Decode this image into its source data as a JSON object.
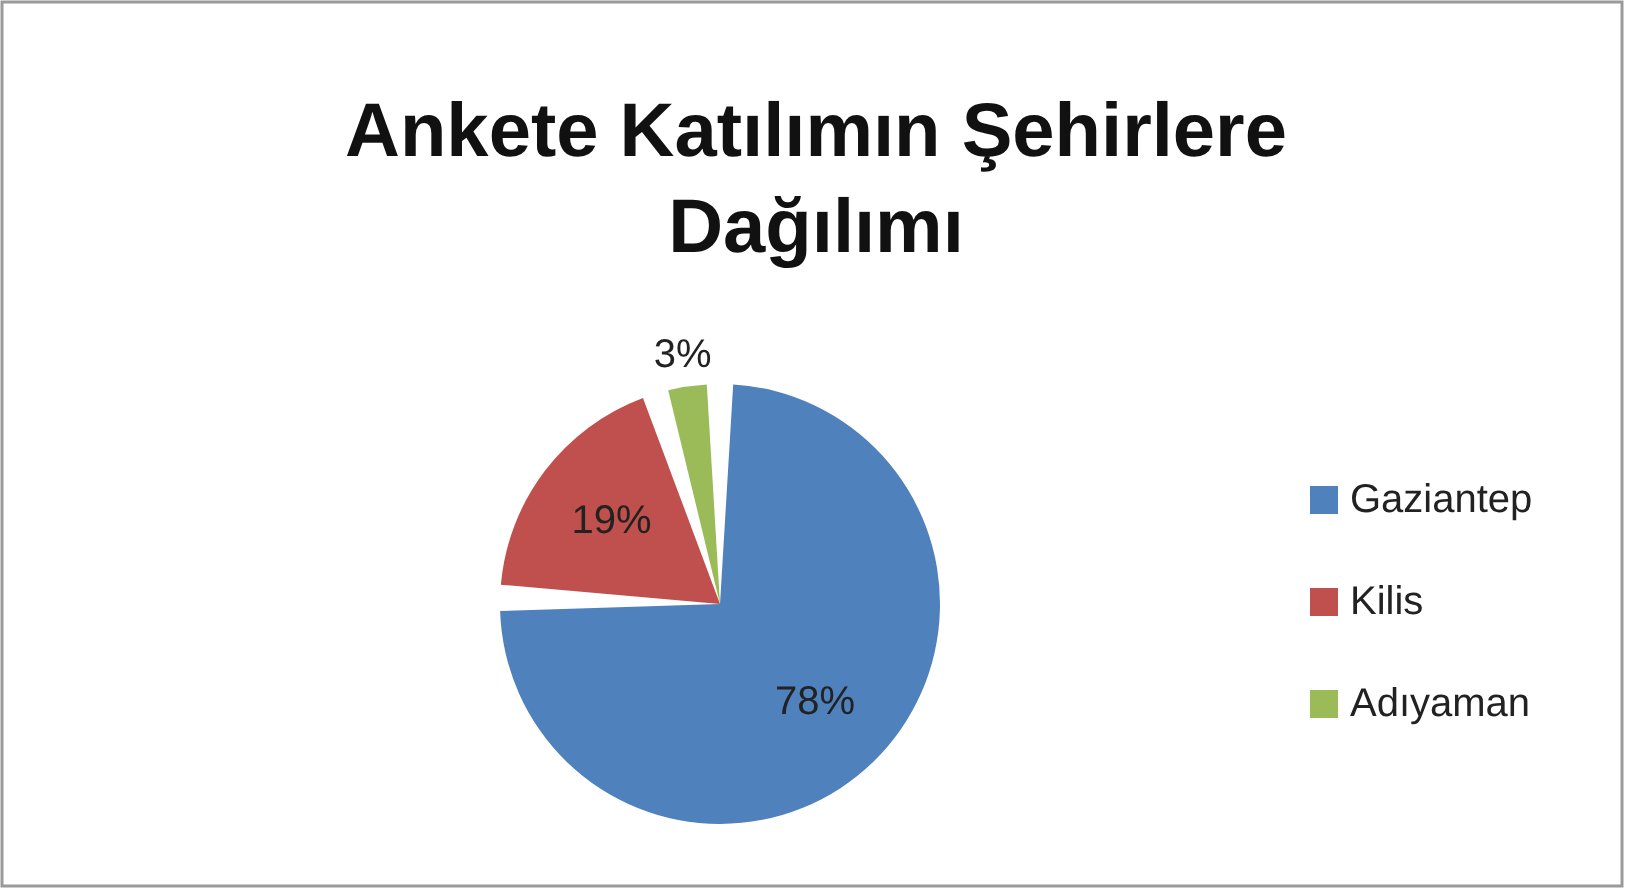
{
  "chart_data": {
    "type": "pie",
    "title": "Ankete Katılımın Şehirlere Dağılımı",
    "categories": [
      "Gaziantep",
      "Kilis",
      "Adıyaman"
    ],
    "values": [
      78,
      19,
      3
    ],
    "colors": [
      "#4f81bd",
      "#c0504d",
      "#9bbb59"
    ],
    "value_labels": [
      "78%",
      "19%",
      "3%"
    ],
    "legend": "right"
  }
}
